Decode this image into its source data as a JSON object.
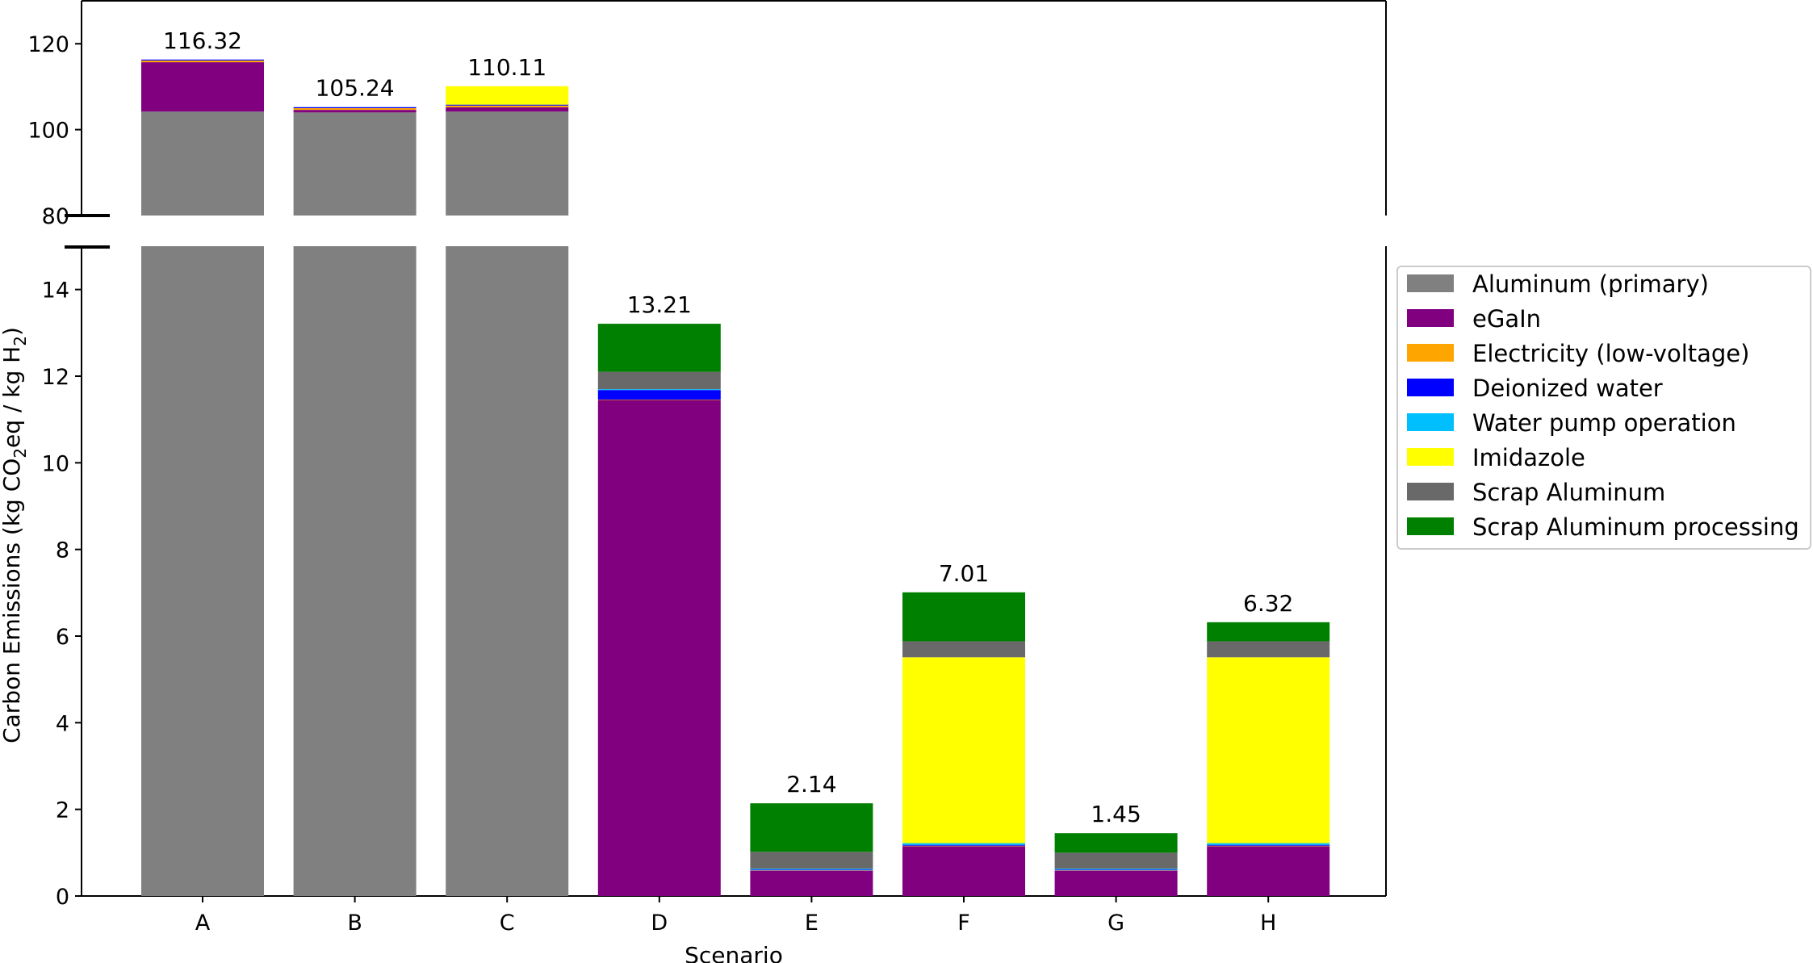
{
  "chart_data": {
    "type": "bar",
    "stacked": true,
    "broken_y_axis": true,
    "categories": [
      "A",
      "B",
      "C",
      "D",
      "E",
      "F",
      "G",
      "H"
    ],
    "series": [
      {
        "name": "Aluminum (primary)",
        "color": "#808080",
        "values": [
          104.2,
          104.0,
          104.2,
          0,
          0,
          0,
          0,
          0
        ]
      },
      {
        "name": "eGaIn",
        "color": "#800080",
        "values": [
          11.5,
          0.6,
          1.0,
          11.45,
          0.58,
          1.15,
          0.58,
          1.15
        ]
      },
      {
        "name": "Electricity (low-voltage)",
        "color": "#FFA500",
        "values": [
          0.4,
          0.4,
          0.4,
          0.01,
          0.01,
          0.01,
          0.01,
          0.01
        ]
      },
      {
        "name": "Deionized water",
        "color": "#0000FF",
        "values": [
          0.22,
          0.24,
          0.22,
          0.22,
          0.02,
          0.02,
          0.02,
          0.02
        ]
      },
      {
        "name": "Water pump operation",
        "color": "#00BFFF",
        "values": [
          0.0,
          0.0,
          0.0,
          0.02,
          0.02,
          0.04,
          0.02,
          0.04
        ]
      },
      {
        "name": "Imidazole",
        "color": "#FFFF00",
        "values": [
          0,
          0,
          4.29,
          0,
          0,
          4.29,
          0,
          4.29
        ]
      },
      {
        "name": "Scrap Aluminum",
        "color": "#696969",
        "values": [
          0,
          0,
          0,
          0.4,
          0.39,
          0.37,
          0.37,
          0.37
        ]
      },
      {
        "name": "Scrap Aluminum processing",
        "color": "#008000",
        "values": [
          0,
          0,
          0,
          1.11,
          1.12,
          1.13,
          0.45,
          0.44
        ]
      }
    ],
    "totals": [
      "116.32",
      "105.24",
      "110.11",
      "13.21",
      "2.14",
      "7.01",
      "1.45",
      "6.32"
    ],
    "xlabel": "Scenario",
    "ylabel_parts": [
      "Carbon Emissions (kg CO",
      "2",
      "eq / kg H",
      "2",
      ")"
    ],
    "ylim_lower": [
      0,
      15
    ],
    "ylim_upper": [
      80,
      130
    ],
    "yticks_lower": [
      "0",
      "2",
      "4",
      "6",
      "8",
      "10",
      "12",
      "14"
    ],
    "yticks_upper": [
      "80",
      "100",
      "120"
    ],
    "legend_position": "right"
  }
}
